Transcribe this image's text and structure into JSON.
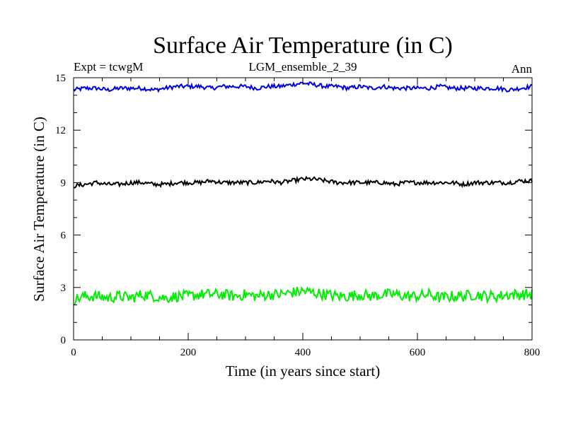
{
  "chart_data": {
    "type": "line",
    "title": "Surface Air Temperature (in C)",
    "subtitle_left": "Expt = tcwgM",
    "subtitle_center": "LGM_ensemble_2_39",
    "subtitle_right": "Ann",
    "xlabel": "Time (in years since start)",
    "ylabel": "Surface Air Temperature (in C)",
    "xlim": [
      0,
      800
    ],
    "ylim": [
      0,
      15
    ],
    "xticks": [
      0,
      200,
      400,
      600,
      800
    ],
    "yticks": [
      0,
      3,
      6,
      9,
      12,
      15
    ],
    "grid": false,
    "series": [
      {
        "name": "upper",
        "color": "#0000dd",
        "step_years": 20,
        "values": [
          14.3,
          14.4,
          14.4,
          14.3,
          14.4,
          14.4,
          14.4,
          14.3,
          14.4,
          14.5,
          14.5,
          14.5,
          14.4,
          14.5,
          14.5,
          14.5,
          14.4,
          14.5,
          14.5,
          14.6,
          14.7,
          14.6,
          14.5,
          14.5,
          14.4,
          14.5,
          14.4,
          14.5,
          14.4,
          14.4,
          14.4,
          14.4,
          14.5,
          14.4,
          14.4,
          14.4,
          14.4,
          14.4,
          14.3,
          14.4,
          14.5
        ]
      },
      {
        "name": "middle",
        "color": "#000000",
        "step_years": 20,
        "values": [
          8.8,
          8.9,
          9.0,
          8.9,
          8.9,
          9.0,
          9.0,
          8.9,
          8.9,
          9.0,
          9.0,
          9.0,
          9.1,
          9.0,
          9.0,
          9.0,
          9.0,
          9.1,
          9.0,
          9.1,
          9.2,
          9.2,
          9.1,
          9.0,
          9.0,
          9.0,
          9.0,
          9.0,
          8.9,
          9.0,
          9.0,
          9.0,
          9.0,
          9.0,
          8.9,
          9.0,
          9.0,
          9.0,
          9.0,
          9.1,
          9.1
        ]
      },
      {
        "name": "lower",
        "color": "#00ee00",
        "step_years": 20,
        "values": [
          2.3,
          2.5,
          2.5,
          2.4,
          2.5,
          2.4,
          2.6,
          2.5,
          2.4,
          2.5,
          2.5,
          2.6,
          2.6,
          2.6,
          2.5,
          2.6,
          2.5,
          2.6,
          2.6,
          2.7,
          2.8,
          2.7,
          2.6,
          2.5,
          2.5,
          2.6,
          2.5,
          2.6,
          2.6,
          2.5,
          2.5,
          2.6,
          2.4,
          2.5,
          2.5,
          2.6,
          2.5,
          2.5,
          2.6,
          2.6,
          2.6
        ]
      }
    ]
  }
}
